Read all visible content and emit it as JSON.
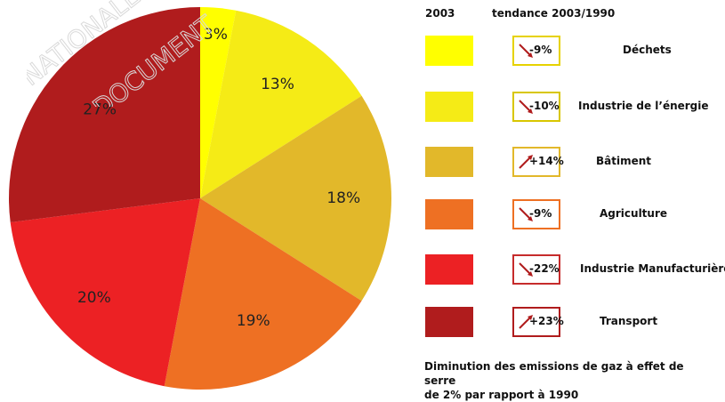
{
  "legend": {
    "header_year": "2003",
    "header_trend": "tendance 2003/1990"
  },
  "note_lines": [
    "Diminution des emissions de gaz à effet de serre",
    "de 2% par rapport à 1990"
  ],
  "watermark": {
    "text_1": "NATIONALE",
    "text_2": "DOCUMENT"
  },
  "chart_data": {
    "type": "pie",
    "start_angle_deg": 0,
    "direction": "clockwise",
    "slices": [
      {
        "category": "Déchets",
        "value": 3,
        "label": "3%",
        "trend": "-9%",
        "trend_direction": "down",
        "color": "#FFFF00",
        "border": "#E6D200"
      },
      {
        "category": "Industrie de l’énergie",
        "value": 13,
        "label": "13%",
        "trend": "-10%",
        "trend_direction": "down",
        "color": "#F5EB16",
        "border": "#D8C600"
      },
      {
        "category": "Bâtiment",
        "value": 18,
        "label": "18%",
        "trend": "+14%",
        "trend_direction": "up",
        "color": "#E2B82A",
        "border": "#E2B82A"
      },
      {
        "category": "Agriculture",
        "value": 19,
        "label": "19%",
        "trend": "-9%",
        "trend_direction": "down",
        "color": "#EE7023",
        "border": "#EE7023"
      },
      {
        "category": "Industrie Manufacturière",
        "value": 20,
        "label": "20%",
        "trend": "-22%",
        "trend_direction": "down",
        "color": "#EC2124",
        "border": "#C62B2B"
      },
      {
        "category": "Transport",
        "value": 27,
        "label": "27%",
        "trend": "+23%",
        "trend_direction": "up",
        "color": "#B01C1D",
        "border": "#B01C1D"
      }
    ]
  }
}
